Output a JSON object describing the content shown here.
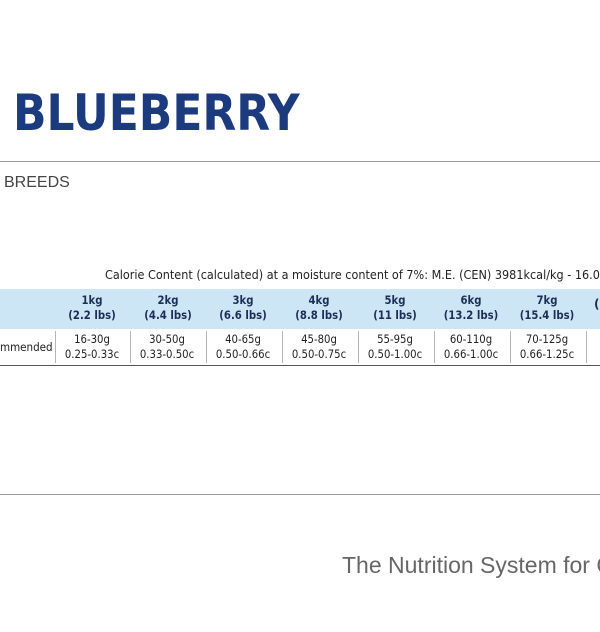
{
  "title": "BLUEBERRY",
  "subtitle": "BREEDS",
  "calorie_text": "Calorie Content (calculated) at a moisture content of 7%: M.E. (CEN) 3981kcal/kg - 16.0",
  "table": {
    "columns": [
      {
        "weight": "1kg",
        "lbs": "(2.2 lbs)"
      },
      {
        "weight": "2kg",
        "lbs": "(4.4 lbs)"
      },
      {
        "weight": "3kg",
        "lbs": "(6.6 lbs)"
      },
      {
        "weight": "4kg",
        "lbs": "(8.8 lbs)"
      },
      {
        "weight": "5kg",
        "lbs": "(11 lbs)"
      },
      {
        "weight": "6kg",
        "lbs": "(13.2 lbs)"
      },
      {
        "weight": "7kg",
        "lbs": "(15.4 lbs)"
      }
    ],
    "row_label": "mmended",
    "values": [
      {
        "grams": "16-30g",
        "cups": "0.25-0.33c"
      },
      {
        "grams": "30-50g",
        "cups": "0.33-0.50c"
      },
      {
        "grams": "40-65g",
        "cups": "0.50-0.66c"
      },
      {
        "grams": "45-80g",
        "cups": "0.50-0.75c"
      },
      {
        "grams": "55-95g",
        "cups": "0.50-1.00c"
      },
      {
        "grams": "60-110g",
        "cups": "0.66-1.00c"
      },
      {
        "grams": "70-125g",
        "cups": "0.66-1.25c"
      }
    ]
  },
  "footer": "The Nutrition System for C"
}
